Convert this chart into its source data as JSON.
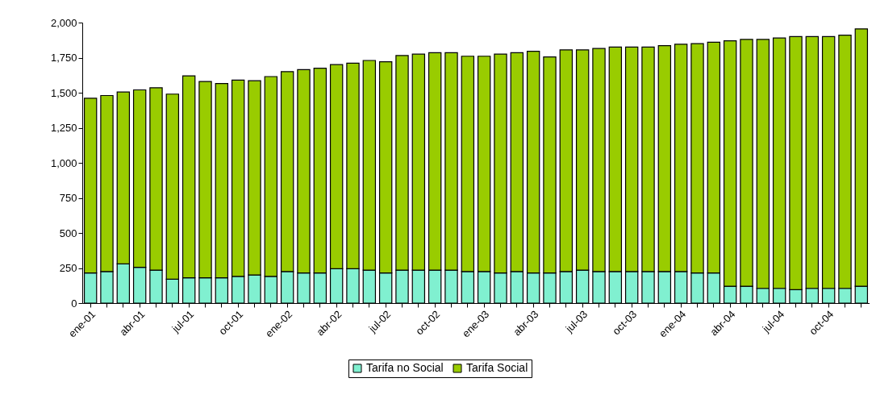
{
  "chart_data": {
    "type": "bar",
    "stacked": true,
    "legend": "bottom",
    "grid": false,
    "categories": [
      "ene-01",
      null,
      null,
      "abr-01",
      null,
      null,
      "jul-01",
      null,
      null,
      "oct-01",
      null,
      null,
      "ene-02",
      null,
      null,
      "abr-02",
      null,
      null,
      "jul-02",
      null,
      null,
      "oct-02",
      null,
      null,
      "ene-03",
      null,
      null,
      "abr-03",
      null,
      null,
      "jul-03",
      null,
      null,
      "oct-03",
      null,
      null,
      "ene-04",
      null,
      null,
      "abr-04",
      null,
      null,
      "jul-04",
      null,
      null,
      "oct-04",
      null,
      null
    ],
    "series": [
      {
        "name": "Tarifa no Social",
        "color": "#80f0d0",
        "values": [
          215,
          225,
          280,
          255,
          235,
          170,
          180,
          180,
          180,
          190,
          200,
          190,
          225,
          215,
          215,
          245,
          245,
          235,
          215,
          235,
          235,
          235,
          235,
          225,
          225,
          215,
          225,
          215,
          215,
          225,
          235,
          225,
          225,
          225,
          225,
          225,
          225,
          215,
          215,
          120,
          120,
          105,
          105,
          95,
          105,
          105,
          105,
          120
        ]
      },
      {
        "name": "Tarifa Social",
        "color": "#99cc00",
        "values": [
          1245,
          1255,
          1225,
          1265,
          1300,
          1320,
          1440,
          1400,
          1385,
          1400,
          1385,
          1425,
          1425,
          1450,
          1460,
          1455,
          1465,
          1495,
          1505,
          1530,
          1540,
          1550,
          1550,
          1535,
          1535,
          1560,
          1560,
          1580,
          1540,
          1580,
          1570,
          1590,
          1600,
          1600,
          1600,
          1610,
          1620,
          1635,
          1645,
          1750,
          1760,
          1775,
          1785,
          1805,
          1795,
          1795,
          1805,
          1835
        ]
      }
    ],
    "ylim": [
      0,
      2000
    ],
    "yticks": [
      0,
      250,
      500,
      750,
      {
        "value": 1000,
        "label": "1,000"
      },
      {
        "value": 1250,
        "label": "1,250"
      },
      {
        "value": 1500,
        "label": "1,500"
      },
      {
        "value": 1750,
        "label": "1,750"
      },
      {
        "value": 2000,
        "label": "2,000"
      }
    ]
  }
}
